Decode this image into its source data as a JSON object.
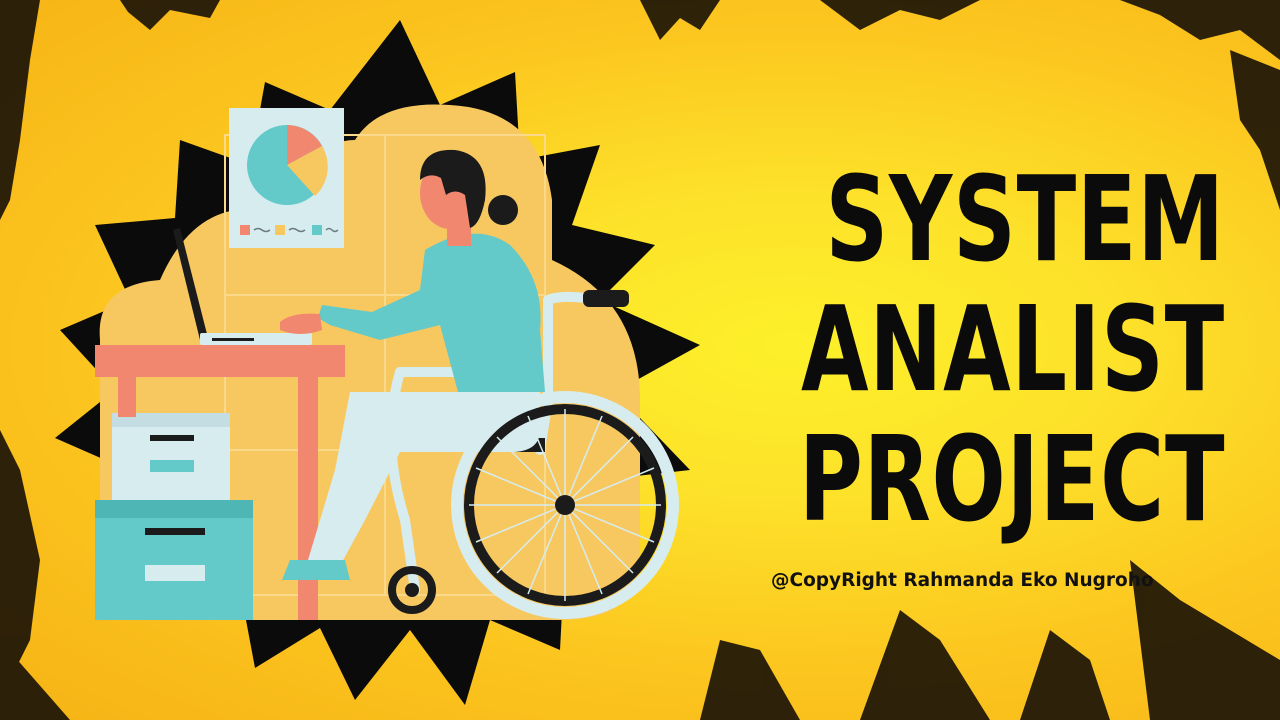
{
  "title": {
    "line1": "SYSTEM",
    "line2": "ANALIST",
    "line3": "PROJECT"
  },
  "copyright": "@CopyRight Rahmanda Eko Nugroho",
  "illustration": {
    "subject": "person-in-wheelchair-at-desk",
    "icons": [
      "pie-chart-poster-icon",
      "laptop-icon",
      "wheelchair-icon",
      "drawer-cabinet-icon"
    ]
  },
  "colors": {
    "background": "#fbc81f",
    "highlight": "#fdf02a",
    "brush": "#1c1408",
    "starburst": "#0b0b0b",
    "blob": "#f7c860",
    "desk": "#f2876f",
    "teal": "#63c9c9",
    "pale_blue": "#d7ecef",
    "text": "#0b0b0b"
  }
}
